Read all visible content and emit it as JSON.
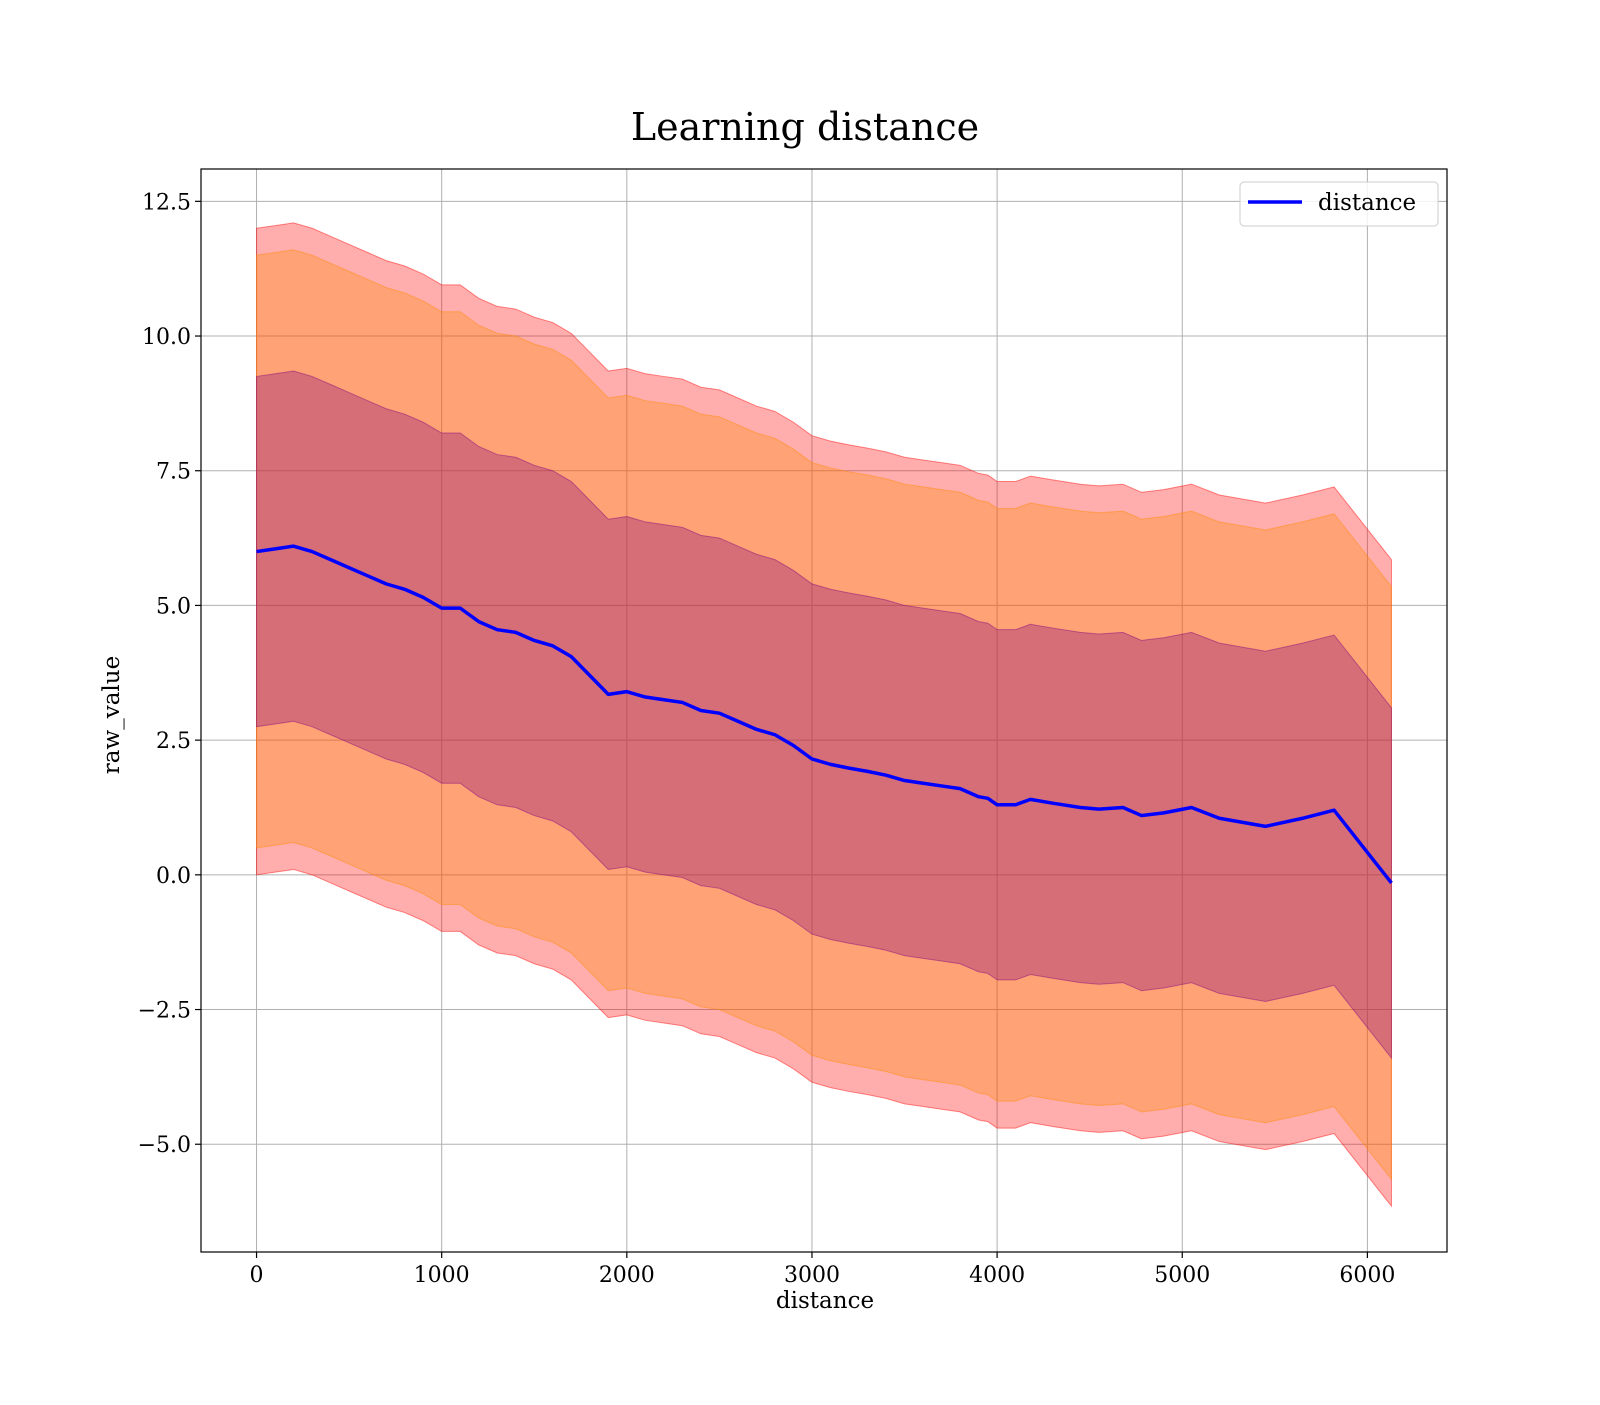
{
  "chart_data": {
    "type": "line",
    "title": "Learning distance",
    "xlabel": "distance",
    "ylabel": "raw_value",
    "xlim": [
      -300,
      6430
    ],
    "ylim": [
      -7.0,
      13.1
    ],
    "xticks": [
      0,
      1000,
      2000,
      3000,
      4000,
      5000,
      6000
    ],
    "xtick_labels": [
      "0",
      "1000",
      "2000",
      "3000",
      "4000",
      "5000",
      "6000"
    ],
    "yticks": [
      -5.0,
      -2.5,
      0.0,
      2.5,
      5.0,
      7.5,
      10.0,
      12.5
    ],
    "ytick_labels": [
      "−5.0",
      "−2.5",
      "0.0",
      "2.5",
      "5.0",
      "7.5",
      "10.0",
      "12.5"
    ],
    "grid": true,
    "legend_position": "top-right",
    "colors": {
      "line": "#0000ff",
      "band_outer": "#ff0000",
      "band_middle": "#ff8c00",
      "band_inner": "#800080",
      "grid": "#b0b0b0"
    },
    "x": [
      0,
      100,
      200,
      300,
      400,
      500,
      600,
      700,
      800,
      900,
      1000,
      1100,
      1200,
      1300,
      1400,
      1500,
      1600,
      1700,
      1800,
      1900,
      2000,
      2100,
      2200,
      2300,
      2400,
      2500,
      2600,
      2700,
      2800,
      2900,
      3000,
      3100,
      3200,
      3300,
      3400,
      3500,
      3600,
      3700,
      3800,
      3900,
      3950,
      4000,
      4100,
      4180,
      4300,
      4450,
      4550,
      4680,
      4780,
      4900,
      5050,
      5200,
      5450,
      5650,
      5820,
      6130
    ],
    "series": [
      {
        "name": "distance",
        "values": [
          6.0,
          6.05,
          6.1,
          6.0,
          5.85,
          5.7,
          5.55,
          5.4,
          5.3,
          5.15,
          4.95,
          4.95,
          4.7,
          4.55,
          4.5,
          4.35,
          4.25,
          4.05,
          3.7,
          3.35,
          3.4,
          3.3,
          3.25,
          3.2,
          3.05,
          3.0,
          2.85,
          2.7,
          2.6,
          2.4,
          2.15,
          2.05,
          1.98,
          1.92,
          1.85,
          1.75,
          1.7,
          1.65,
          1.6,
          1.45,
          1.42,
          1.3,
          1.3,
          1.4,
          1.33,
          1.25,
          1.22,
          1.25,
          1.1,
          1.15,
          1.25,
          1.05,
          0.9,
          1.05,
          1.2,
          -0.15
        ]
      }
    ],
    "bands": [
      {
        "color": "#ff0000",
        "opacity": 0.32,
        "lower": [
          0.0,
          0.05,
          0.1,
          0.0,
          -0.15,
          -0.3,
          -0.45,
          -0.6,
          -0.7,
          -0.85,
          -1.05,
          -1.05,
          -1.3,
          -1.45,
          -1.5,
          -1.65,
          -1.75,
          -1.95,
          -2.3,
          -2.65,
          -2.6,
          -2.7,
          -2.75,
          -2.8,
          -2.95,
          -3.0,
          -3.15,
          -3.3,
          -3.4,
          -3.6,
          -3.85,
          -3.95,
          -4.02,
          -4.08,
          -4.15,
          -4.25,
          -4.3,
          -4.35,
          -4.4,
          -4.55,
          -4.58,
          -4.7,
          -4.7,
          -4.6,
          -4.67,
          -4.75,
          -4.78,
          -4.75,
          -4.9,
          -4.85,
          -4.75,
          -4.95,
          -5.1,
          -4.95,
          -4.8,
          -6.15
        ],
        "upper": [
          12.0,
          12.05,
          12.1,
          12.0,
          11.85,
          11.7,
          11.55,
          11.4,
          11.3,
          11.15,
          10.95,
          10.95,
          10.7,
          10.55,
          10.5,
          10.35,
          10.25,
          10.05,
          9.7,
          9.35,
          9.4,
          9.3,
          9.25,
          9.2,
          9.05,
          9.0,
          8.85,
          8.7,
          8.6,
          8.4,
          8.15,
          8.05,
          7.98,
          7.92,
          7.85,
          7.75,
          7.7,
          7.65,
          7.6,
          7.45,
          7.42,
          7.3,
          7.3,
          7.4,
          7.33,
          7.25,
          7.22,
          7.25,
          7.1,
          7.15,
          7.25,
          7.05,
          6.9,
          7.05,
          7.2,
          5.85
        ]
      },
      {
        "color": "#ff8c00",
        "opacity": 0.32,
        "lower": [
          0.5,
          0.55,
          0.6,
          0.5,
          0.35,
          0.2,
          0.05,
          -0.1,
          -0.2,
          -0.35,
          -0.55,
          -0.55,
          -0.8,
          -0.95,
          -1.0,
          -1.15,
          -1.25,
          -1.45,
          -1.8,
          -2.15,
          -2.1,
          -2.2,
          -2.25,
          -2.3,
          -2.45,
          -2.5,
          -2.65,
          -2.8,
          -2.9,
          -3.1,
          -3.35,
          -3.45,
          -3.52,
          -3.58,
          -3.65,
          -3.75,
          -3.8,
          -3.85,
          -3.9,
          -4.05,
          -4.08,
          -4.2,
          -4.2,
          -4.1,
          -4.17,
          -4.25,
          -4.28,
          -4.25,
          -4.4,
          -4.35,
          -4.25,
          -4.45,
          -4.6,
          -4.45,
          -4.3,
          -5.65
        ],
        "upper": [
          11.5,
          11.55,
          11.6,
          11.5,
          11.35,
          11.2,
          11.05,
          10.9,
          10.8,
          10.65,
          10.45,
          10.45,
          10.2,
          10.05,
          10.0,
          9.85,
          9.75,
          9.55,
          9.2,
          8.85,
          8.9,
          8.8,
          8.75,
          8.7,
          8.55,
          8.5,
          8.35,
          8.2,
          8.1,
          7.9,
          7.65,
          7.55,
          7.48,
          7.42,
          7.35,
          7.25,
          7.2,
          7.15,
          7.1,
          6.95,
          6.92,
          6.8,
          6.8,
          6.9,
          6.83,
          6.75,
          6.72,
          6.75,
          6.6,
          6.65,
          6.75,
          6.55,
          6.4,
          6.55,
          6.7,
          5.35
        ]
      },
      {
        "color": "#800080",
        "opacity": 0.32,
        "lower": [
          2.75,
          2.8,
          2.85,
          2.75,
          2.6,
          2.45,
          2.3,
          2.15,
          2.05,
          1.9,
          1.7,
          1.7,
          1.45,
          1.3,
          1.25,
          1.1,
          1.0,
          0.8,
          0.45,
          0.1,
          0.15,
          0.05,
          0.0,
          -0.05,
          -0.2,
          -0.25,
          -0.4,
          -0.55,
          -0.65,
          -0.85,
          -1.1,
          -1.2,
          -1.27,
          -1.33,
          -1.4,
          -1.5,
          -1.55,
          -1.6,
          -1.65,
          -1.8,
          -1.83,
          -1.95,
          -1.95,
          -1.85,
          -1.92,
          -2.0,
          -2.03,
          -2.0,
          -2.15,
          -2.1,
          -2.0,
          -2.2,
          -2.35,
          -2.2,
          -2.05,
          -3.4
        ],
        "upper": [
          9.25,
          9.3,
          9.35,
          9.25,
          9.1,
          8.95,
          8.8,
          8.65,
          8.55,
          8.4,
          8.2,
          8.2,
          7.95,
          7.8,
          7.75,
          7.6,
          7.5,
          7.3,
          6.95,
          6.6,
          6.65,
          6.55,
          6.5,
          6.45,
          6.3,
          6.25,
          6.1,
          5.95,
          5.85,
          5.65,
          5.4,
          5.3,
          5.23,
          5.17,
          5.1,
          5.0,
          4.95,
          4.9,
          4.85,
          4.7,
          4.67,
          4.55,
          4.55,
          4.65,
          4.58,
          4.5,
          4.47,
          4.5,
          4.35,
          4.4,
          4.5,
          4.3,
          4.15,
          4.3,
          4.45,
          3.1
        ]
      }
    ]
  }
}
